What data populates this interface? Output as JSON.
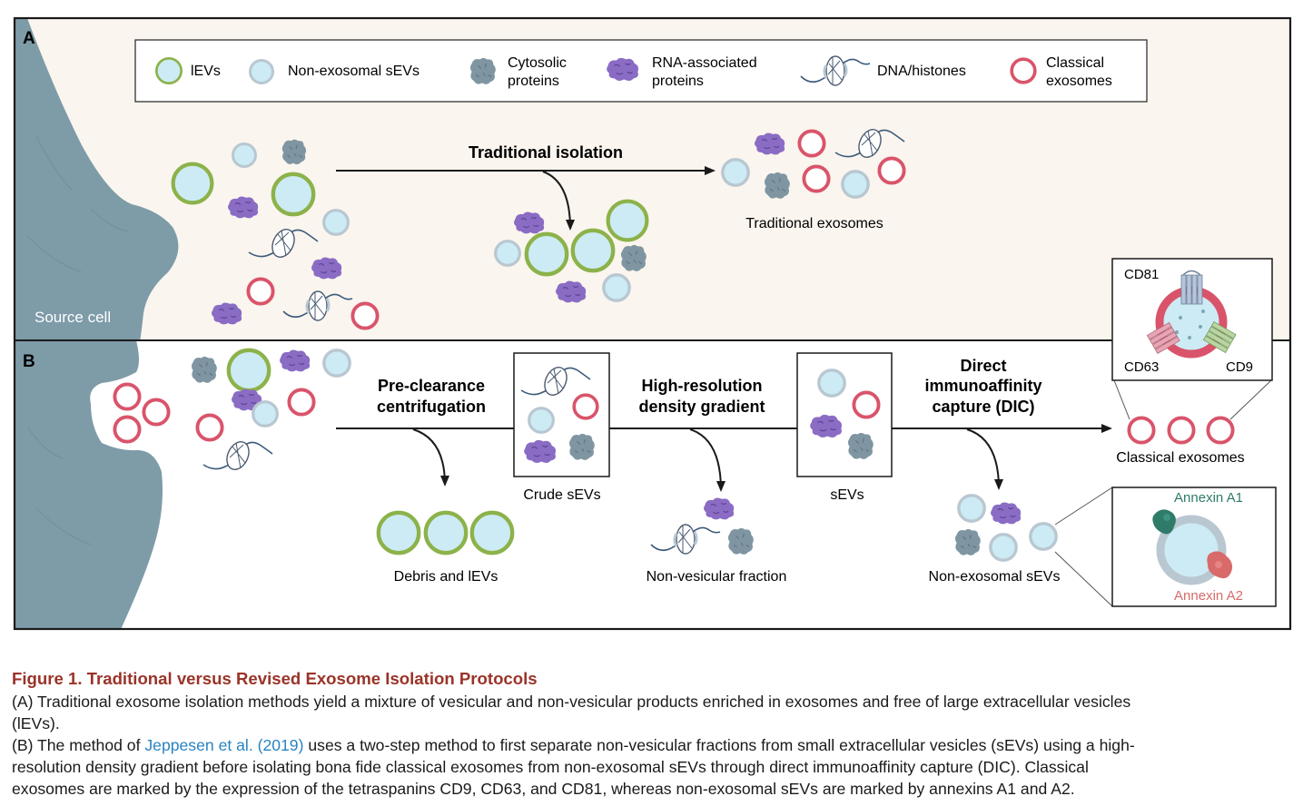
{
  "panels": {
    "a_label": "A",
    "b_label": "B"
  },
  "legend": {
    "items": [
      {
        "label": "lEVs",
        "icon": "large-ev-icon"
      },
      {
        "label": "Non-exosomal sEVs",
        "icon": "small-ev-icon"
      },
      {
        "label_line1": "Cytosolic",
        "label_line2": "proteins",
        "icon": "cytosolic-protein-icon"
      },
      {
        "label_line1": "RNA-associated",
        "label_line2": "proteins",
        "icon": "rna-protein-icon"
      },
      {
        "label": "DNA/histones",
        "icon": "dna-histone-icon"
      },
      {
        "label_line1": "Classical",
        "label_line2": "exosomes",
        "icon": "classical-exosome-icon"
      }
    ]
  },
  "panel_a": {
    "source_cell": "Source cell",
    "arrow_label": "Traditional isolation",
    "result_label": "Traditional exosomes"
  },
  "panel_b": {
    "step1_line1": "Pre-clearance",
    "step1_line2": "centrifugation",
    "step2_line1": "High-resolution",
    "step2_line2": "density gradient",
    "step3_line1": "Direct",
    "step3_line2": "immunoaffinity",
    "step3_line3": "capture (DIC)",
    "box1_label": "Crude sEVs",
    "box2_label": "sEVs",
    "out1_label": "Debris and lEVs",
    "out2_label": "Non-vesicular fraction",
    "out3_label": "Non-exosomal sEVs",
    "final_label": "Classical exosomes",
    "inset_top": {
      "cd81": "CD81",
      "cd63": "CD63",
      "cd9": "CD9"
    },
    "inset_bottom": {
      "a1": "Annexin A1",
      "a2": "Annexin A2"
    }
  },
  "colors": {
    "lev_ring": "#8cb24a",
    "vesicle_fill": "#cdebf4",
    "sev_ring": "#b9c7d1",
    "exo_ring": "#d9546a",
    "cytosolic": "#7f96a2",
    "rna_protein": "#8a6cc4",
    "cell": "#7e9ba8",
    "panel_a_bg": "#faf5ee",
    "annexin_a1": "#2f7b6a",
    "annexin_a2": "#d96a6a",
    "caption_title": "#9a3329",
    "link": "#2a83c2"
  },
  "caption": {
    "title": "Figure 1.  Traditional versus Revised Exosome Isolation Protocols",
    "a_line1": "(A) Traditional exosome isolation methods yield a mixture of vesicular and non-vesicular products enriched in exosomes and free of large extracellular vesicles",
    "a_line2": "(lEVs).",
    "b_pre": "(B) The method of",
    "b_ref": "Jeppesen et al. (2019)",
    "b_post": "uses a two-step method to first separate non-vesicular fractions from small extracellular vesicles (sEVs) using a high-",
    "b_line2": "resolution density gradient before isolating bona fide classical exosomes from non-exosomal sEVs through direct immunoaffinity capture (DIC). Classical",
    "b_line3": "exosomes are marked by the expression of the tetraspanins CD9, CD63, and CD81, whereas non-exosomal sEVs are marked by annexins A1 and A2."
  }
}
